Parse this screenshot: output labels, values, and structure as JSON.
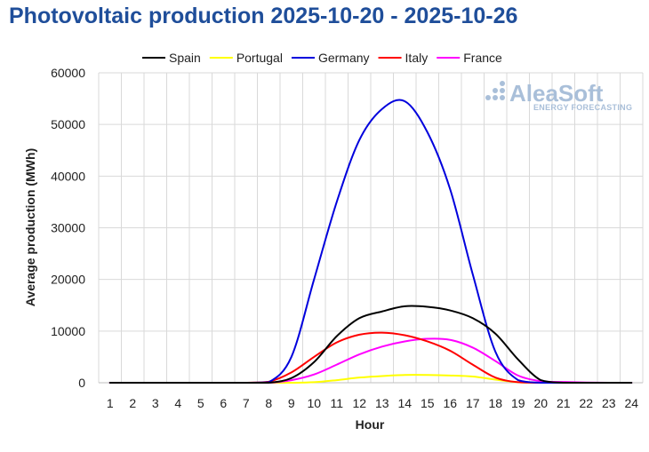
{
  "chart_data": {
    "type": "line",
    "title": "Photovoltaic production 2025-10-20 - 2025-10-26",
    "xlabel": "Hour",
    "ylabel": "Average production (MWh)",
    "x": [
      1,
      2,
      3,
      4,
      5,
      6,
      7,
      8,
      9,
      10,
      11,
      12,
      13,
      14,
      15,
      16,
      17,
      18,
      19,
      20,
      21,
      22,
      23,
      24
    ],
    "xlim": [
      1,
      24
    ],
    "ylim": [
      0,
      60000
    ],
    "yticks": [
      0,
      10000,
      20000,
      30000,
      40000,
      50000,
      60000
    ],
    "grid": true,
    "legend": "top",
    "series": [
      {
        "name": "Spain",
        "color": "#000000",
        "values": [
          0,
          0,
          0,
          0,
          0,
          0,
          0,
          0,
          900,
          4000,
          9000,
          12500,
          13800,
          14800,
          14700,
          14000,
          12500,
          9500,
          4500,
          500,
          0,
          0,
          0,
          0
        ]
      },
      {
        "name": "Portugal",
        "color": "#ffff00",
        "values": [
          0,
          0,
          0,
          0,
          0,
          0,
          0,
          0,
          0,
          100,
          500,
          1000,
          1300,
          1500,
          1500,
          1400,
          1200,
          600,
          100,
          0,
          0,
          0,
          0,
          0
        ]
      },
      {
        "name": "Germany",
        "color": "#0000dd",
        "values": [
          0,
          0,
          0,
          0,
          0,
          0,
          0,
          100,
          5000,
          20000,
          35000,
          47000,
          53000,
          54500,
          48500,
          37500,
          21000,
          6000,
          500,
          0,
          0,
          0,
          0,
          0
        ]
      },
      {
        "name": "Italy",
        "color": "#ff0000",
        "values": [
          0,
          0,
          0,
          0,
          0,
          0,
          0,
          200,
          2000,
          5000,
          7800,
          9300,
          9700,
          9200,
          8000,
          6200,
          3500,
          1000,
          100,
          0,
          0,
          0,
          0,
          0
        ]
      },
      {
        "name": "France",
        "color": "#ff00ff",
        "values": [
          0,
          0,
          0,
          0,
          0,
          0,
          0,
          0,
          500,
          1600,
          3500,
          5500,
          7000,
          8000,
          8500,
          8300,
          6800,
          4200,
          1400,
          300,
          150,
          50,
          0,
          0
        ]
      }
    ]
  },
  "logo": {
    "name": "AleaSoft",
    "tagline": "ENERGY FORECASTING"
  }
}
